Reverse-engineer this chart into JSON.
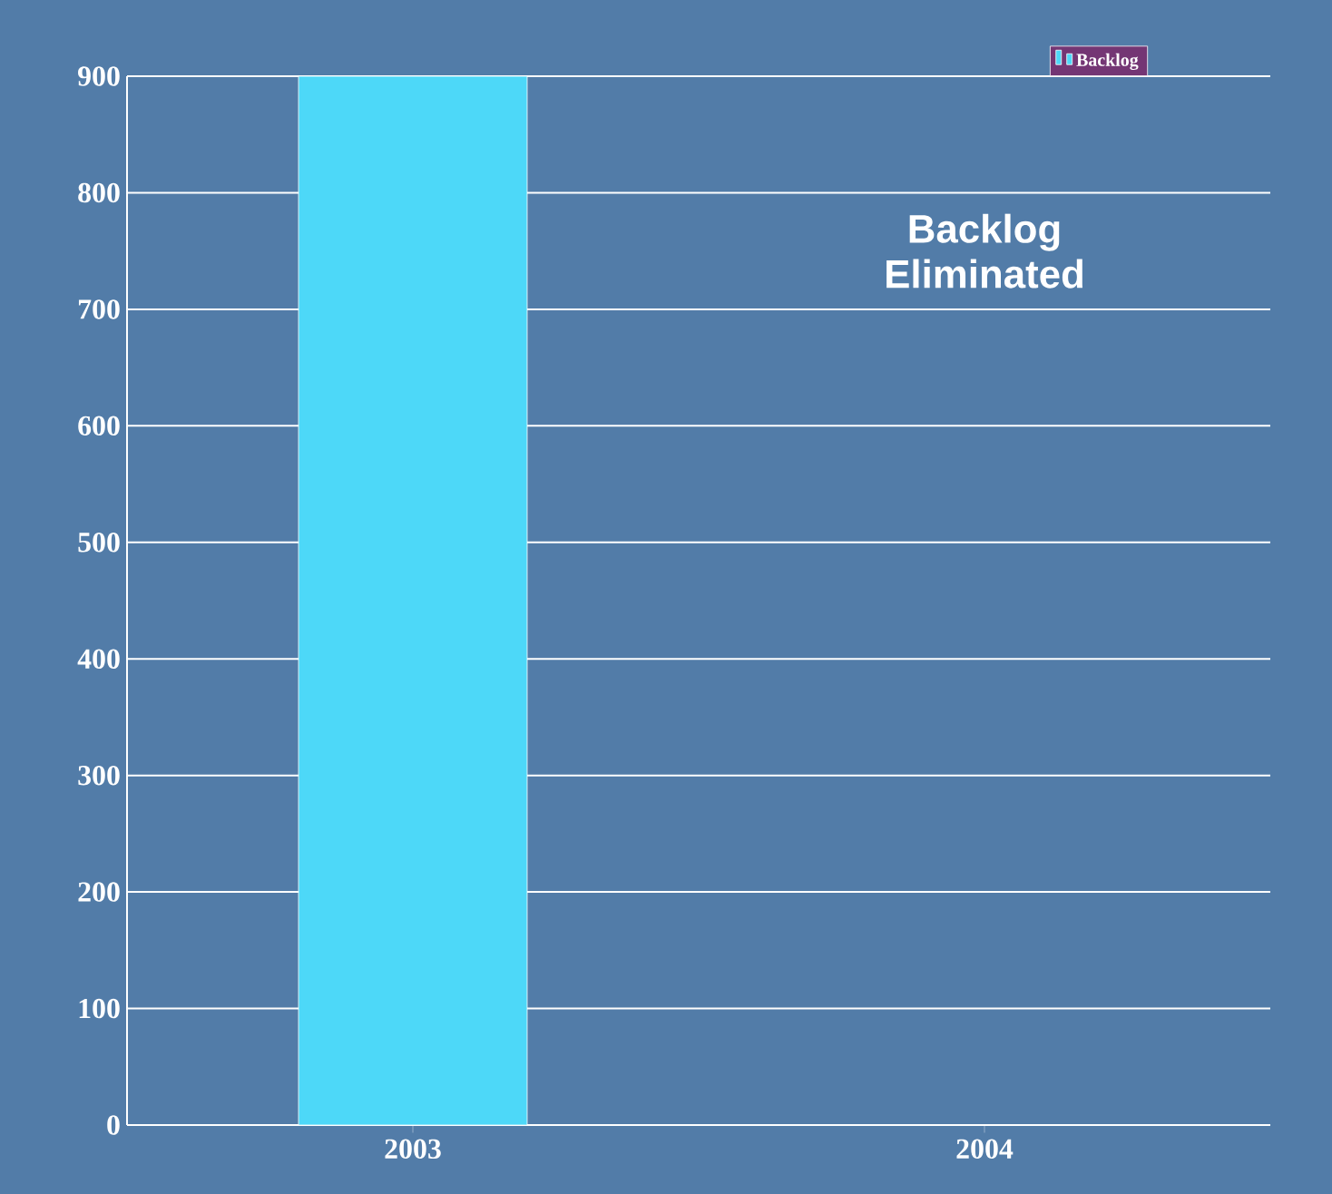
{
  "chart_data": {
    "type": "bar",
    "categories": [
      "2003",
      "2004"
    ],
    "series": [
      {
        "name": "Backlog",
        "color": "#4dd8f8",
        "values": [
          900,
          0
        ]
      }
    ],
    "ylim": [
      0,
      900
    ],
    "yticks": [
      0,
      100,
      200,
      300,
      400,
      500,
      600,
      700,
      800,
      900
    ],
    "grid": "y",
    "legend": "top right",
    "annotations": [
      "Backlog Eliminated"
    ]
  }
}
